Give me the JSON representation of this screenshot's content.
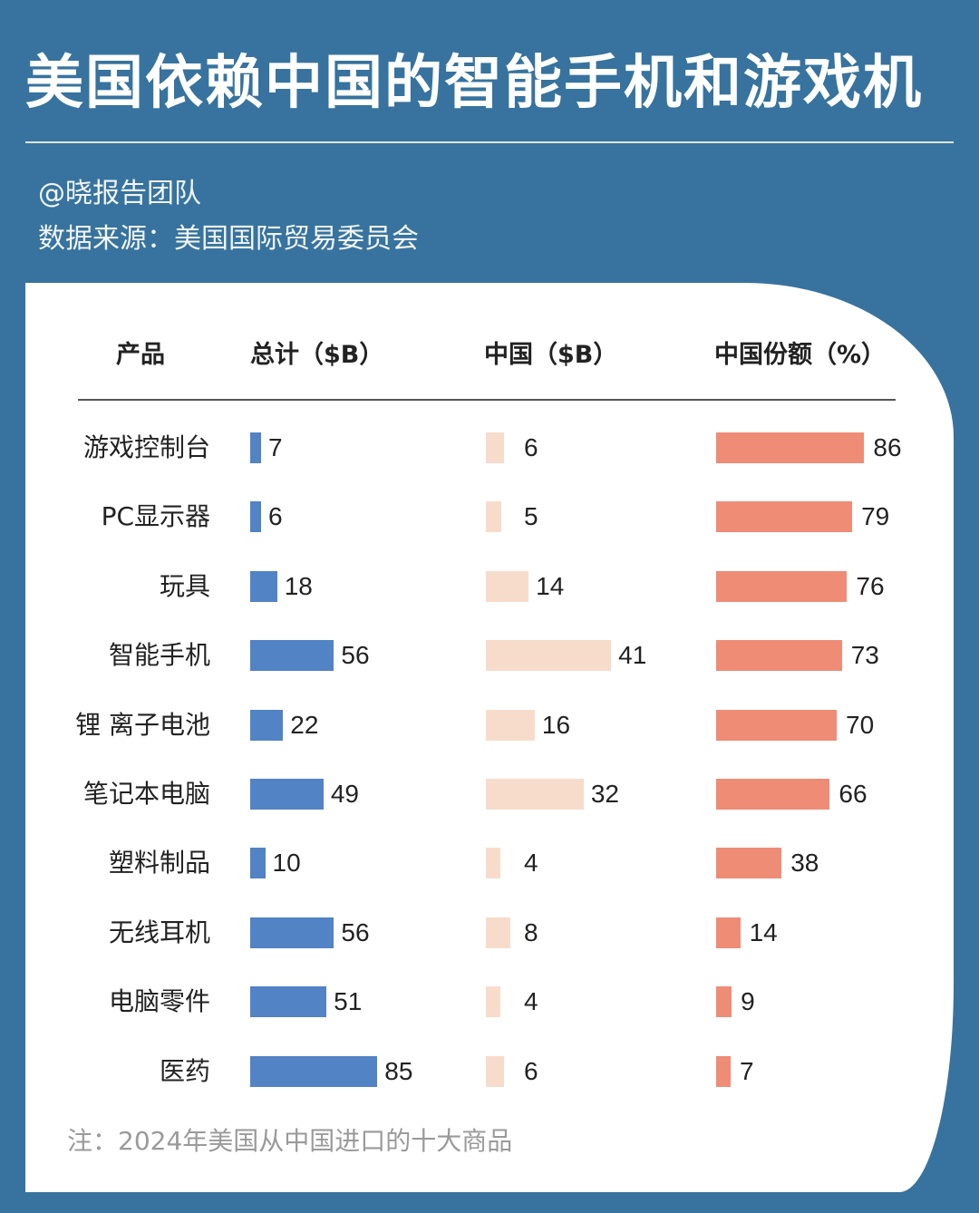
{
  "header": {
    "title": "美国依赖中国的智能手机和游戏机",
    "author": "@晓报告团队",
    "source": "数据来源：美国国际贸易委员会"
  },
  "table": {
    "columns": [
      "产品",
      "总计（$B）",
      "中国（$B）",
      "中国份额（%）"
    ]
  },
  "footer": {
    "note": "注：2024年美国从中国进口的十大商品"
  },
  "colors": {
    "background": "#37739e",
    "total_bar": "#5183c5",
    "china_bar": "#f8dccb",
    "share_bar": "#ee8c76"
  },
  "chart_data": {
    "type": "table",
    "title": "美国依赖中国的智能手机和游戏机",
    "subtitle": "注：2024年美国从中国进口的十大商品",
    "columns": [
      "产品",
      "总计（$B）",
      "中国（$B）",
      "中国份额（%）"
    ],
    "categories": [
      "游戏控制台",
      "PC显示器",
      "玩具",
      "智能手机",
      "锂 离子电池",
      "笔记本电脑",
      "塑料制品",
      "无线耳机",
      "电脑零件",
      "医药"
    ],
    "series": [
      {
        "name": "总计（$B）",
        "values": [
          7,
          6,
          18,
          56,
          22,
          49,
          10,
          56,
          51,
          85
        ]
      },
      {
        "name": "中国（$B）",
        "values": [
          6,
          5,
          14,
          41,
          16,
          32,
          4,
          8,
          4,
          6
        ]
      },
      {
        "name": "中国份额（%）",
        "values": [
          86,
          79,
          76,
          73,
          70,
          66,
          38,
          14,
          9,
          7
        ]
      }
    ],
    "rows": [
      {
        "product": "游戏控制台",
        "total": "7",
        "china": "6",
        "share": "86"
      },
      {
        "product": "PC显示器",
        "total": "6",
        "china": "5",
        "share": "79"
      },
      {
        "product": "玩具",
        "total": "18",
        "china": "14",
        "share": "76"
      },
      {
        "product": "智能手机",
        "total": "56",
        "china": "41",
        "share": "73"
      },
      {
        "product": "锂 离子电池",
        "total": "22",
        "china": "16",
        "share": "70"
      },
      {
        "product": "笔记本电脑",
        "total": "49",
        "china": "32",
        "share": "66"
      },
      {
        "product": "塑料制品",
        "total": "10",
        "china": "4",
        "share": "38"
      },
      {
        "product": "无线耳机",
        "total": "56",
        "china": "8",
        "share": "14"
      },
      {
        "product": "电脑零件",
        "total": "51",
        "china": "4",
        "share": "9"
      },
      {
        "product": "医药",
        "total": "85",
        "china": "6",
        "share": "7"
      }
    ]
  }
}
